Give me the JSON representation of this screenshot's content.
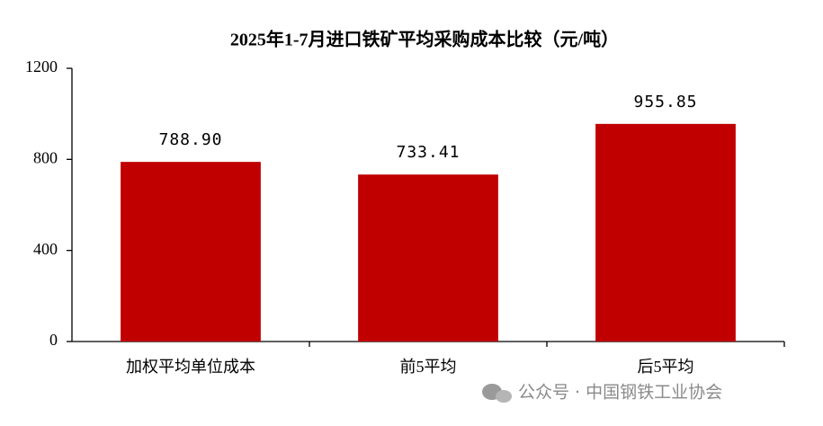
{
  "chart_data": {
    "type": "bar",
    "title": "2025年1-7月进口铁矿平均采购成本比较（元/吨）",
    "categories": [
      "加权平均单位成本",
      "前5平均",
      "后5平均"
    ],
    "values": [
      788.9,
      733.41,
      955.85
    ],
    "value_labels": [
      "788.90",
      "733.41",
      "955.85"
    ],
    "color": "#c00000",
    "ylim": [
      0,
      1200
    ],
    "yticks": [
      0,
      400,
      800,
      1200
    ],
    "grid": false
  },
  "watermark": "公众号 · 中国钢铁工业协会"
}
